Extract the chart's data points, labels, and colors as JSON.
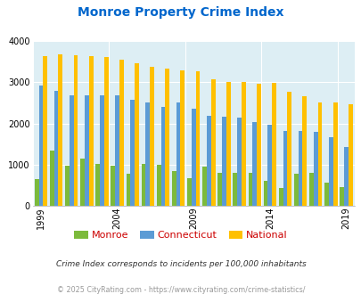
{
  "title": "Monroe Property Crime Index",
  "title_color": "#0066cc",
  "subtitle": "Crime Index corresponds to incidents per 100,000 inhabitants",
  "footer": "© 2025 CityRating.com - https://www.cityrating.com/crime-statistics/",
  "years": [
    1999,
    2000,
    2001,
    2002,
    2003,
    2004,
    2005,
    2006,
    2007,
    2008,
    2009,
    2010,
    2011,
    2012,
    2013,
    2014,
    2015,
    2016,
    2017,
    2018,
    2019
  ],
  "monroe": [
    650,
    1350,
    970,
    1150,
    1010,
    970,
    790,
    1010,
    990,
    850,
    680,
    960,
    800,
    800,
    800,
    600,
    440,
    790,
    800,
    560,
    450
  ],
  "connecticut": [
    2920,
    2800,
    2680,
    2680,
    2680,
    2690,
    2570,
    2510,
    2410,
    2510,
    2370,
    2190,
    2170,
    2140,
    2030,
    1970,
    1820,
    1820,
    1790,
    1670,
    1430
  ],
  "national": [
    3630,
    3680,
    3650,
    3630,
    3620,
    3560,
    3460,
    3370,
    3340,
    3290,
    3270,
    3080,
    3010,
    3000,
    2970,
    2990,
    2760,
    2660,
    2520,
    2500,
    2460
  ],
  "monroe_color": "#7cba3c",
  "connecticut_color": "#5b9bd5",
  "national_color": "#ffc000",
  "bg_color": "#ddeef4",
  "ylim": [
    0,
    4000
  ],
  "yticks": [
    0,
    1000,
    2000,
    3000,
    4000
  ],
  "bar_width": 0.28,
  "shown_years": [
    1999,
    2004,
    2009,
    2014,
    2019
  ]
}
